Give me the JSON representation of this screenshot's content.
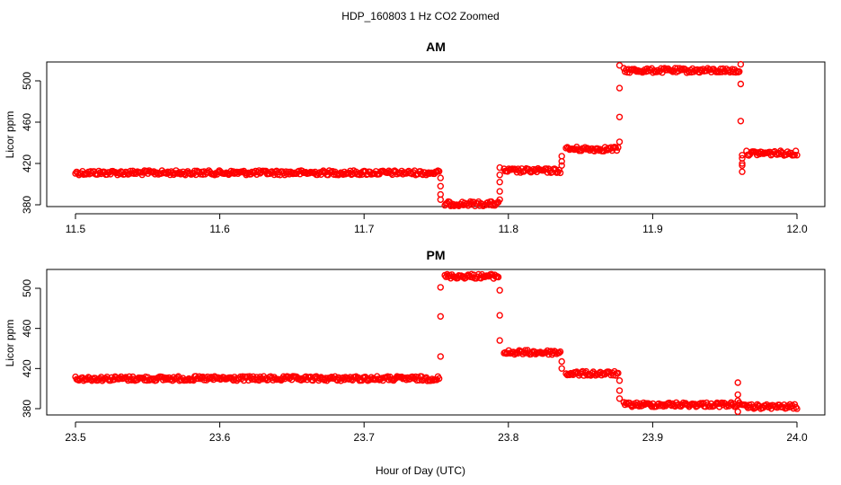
{
  "figure": {
    "suptitle": "HDP_160803  1 Hz CO2 Zoomed",
    "xlabel": "Hour of Day (UTC)",
    "point_color": "#ff0000"
  },
  "chart_data": [
    {
      "type": "scatter",
      "title": "AM",
      "xlabel": "",
      "ylabel": "Licor ppm",
      "xlim": [
        11.5,
        12.0
      ],
      "ylim": [
        376,
        522
      ],
      "xticks": [
        "11.5",
        "11.6",
        "11.7",
        "11.8",
        "11.9",
        "12.0"
      ],
      "yticks": [
        "380",
        "420",
        "460",
        "500"
      ],
      "grid": false,
      "segments": [
        {
          "x_start": 11.5,
          "x_end": 11.752,
          "y": 411
        },
        {
          "x_start": 11.756,
          "x_end": 11.793,
          "y": 381
        },
        {
          "x_start": 11.797,
          "x_end": 11.836,
          "y": 413
        },
        {
          "x_start": 11.84,
          "x_end": 11.876,
          "y": 434
        },
        {
          "x_start": 11.88,
          "x_end": 11.96,
          "y": 510
        },
        {
          "x_start": 11.965,
          "x_end": 12.0,
          "y": 430
        }
      ],
      "transitions": [
        {
          "x": 11.753,
          "y": [
            406,
            398,
            390,
            385
          ]
        },
        {
          "x": 11.794,
          "y": [
            385,
            393,
            402,
            409,
            416
          ]
        },
        {
          "x": 11.837,
          "y": [
            418,
            422,
            427
          ]
        },
        {
          "x": 11.877,
          "y": [
            441,
            465,
            493,
            515
          ]
        },
        {
          "x": 11.961,
          "y": [
            516,
            497,
            461
          ]
        },
        {
          "x": 11.962,
          "y": [
            428,
            420,
            412,
            418,
            425
          ]
        }
      ]
    },
    {
      "type": "scatter",
      "title": "PM",
      "xlabel": "",
      "ylabel": "Licor ppm",
      "xlim": [
        23.5,
        24.0
      ],
      "ylim": [
        373,
        522
      ],
      "xticks": [
        "23.5",
        "23.6",
        "23.7",
        "23.8",
        "23.9",
        "24.0"
      ],
      "yticks": [
        "380",
        "420",
        "460",
        "500"
      ],
      "grid": false,
      "segments": [
        {
          "x_start": 23.5,
          "x_end": 23.752,
          "y": 410
        },
        {
          "x_start": 23.756,
          "x_end": 23.793,
          "y": 512
        },
        {
          "x_start": 23.797,
          "x_end": 23.836,
          "y": 436
        },
        {
          "x_start": 23.84,
          "x_end": 23.876,
          "y": 415
        },
        {
          "x_start": 23.88,
          "x_end": 23.96,
          "y": 384
        },
        {
          "x_start": 23.962,
          "x_end": 24.0,
          "y": 382
        }
      ],
      "transitions": [
        {
          "x": 23.753,
          "y": [
            432,
            472,
            501
          ]
        },
        {
          "x": 23.794,
          "y": [
            498,
            473,
            448
          ]
        },
        {
          "x": 23.837,
          "y": [
            427,
            420
          ]
        },
        {
          "x": 23.877,
          "y": [
            408,
            398,
            390
          ]
        },
        {
          "x": 23.959,
          "y": [
            406,
            394,
            388,
            377
          ]
        }
      ]
    }
  ]
}
